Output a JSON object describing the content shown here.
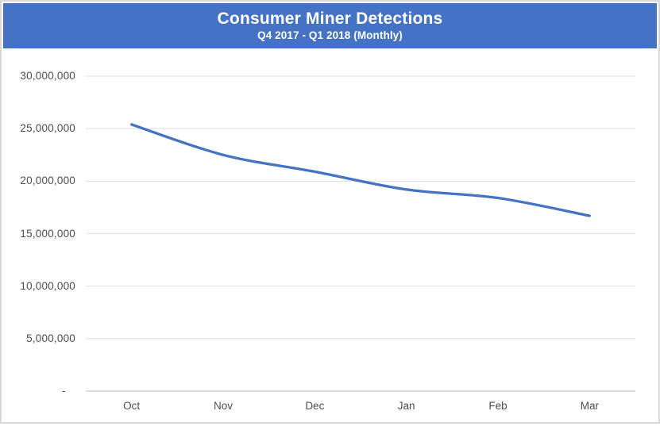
{
  "header": {
    "title": "Consumer Miner Detections",
    "subtitle": "Q4 2017 - Q1 2018 (Monthly)"
  },
  "colors": {
    "banner_background": "#4472C4",
    "banner_text": "#FFFFFF",
    "series_line": "#4472C4",
    "gridline": "#E3E3E3",
    "axis_line": "#CDCDCD",
    "tick_label_text": "#4D4D4D",
    "page_border": "#D9D9D9",
    "background": "#FFFFFF"
  },
  "chart_data": {
    "type": "line",
    "title": "Consumer Miner Detections",
    "subtitle": "Q4 2017 - Q1 2018 (Monthly)",
    "categories": [
      "Oct",
      "Nov",
      "Dec",
      "Jan",
      "Feb",
      "Mar"
    ],
    "series": [
      {
        "name": "Consumer Miner Detections",
        "values": [
          25400000,
          22500000,
          20900000,
          19200000,
          18400000,
          16700000
        ]
      }
    ],
    "xlabel": "",
    "ylabel": "",
    "ylim": [
      0,
      30000000
    ],
    "ytick_interval": 5000000,
    "ytick_labels_top_to_bottom": [
      "30,000,000",
      "25,000,000",
      "20,000,000",
      "15,000,000",
      "10,000,000",
      "5,000,000",
      "-"
    ],
    "grid": true,
    "legend_position": "none",
    "line_smooth": true
  }
}
